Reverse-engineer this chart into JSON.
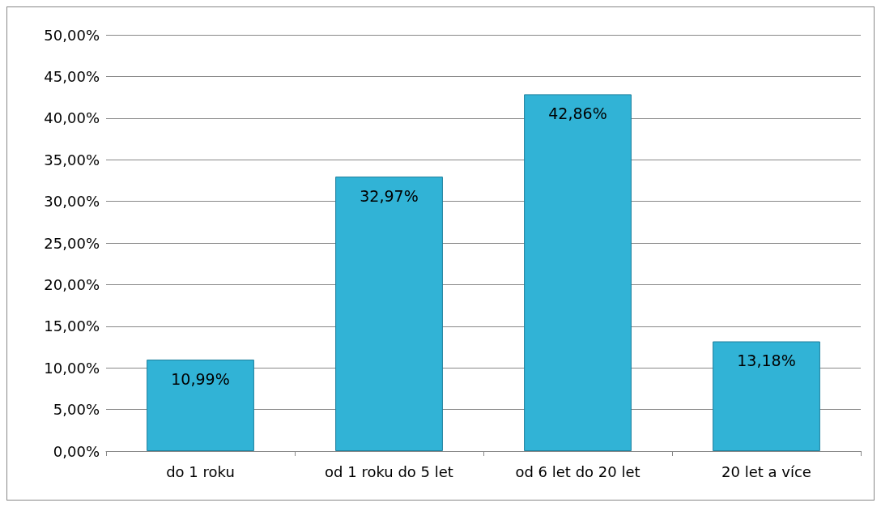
{
  "chart_data": {
    "type": "bar",
    "categories": [
      "do 1 roku",
      "od 1 roku do 5 let",
      "od 6 let do 20 let",
      "20 let a více"
    ],
    "values": [
      10.99,
      32.97,
      42.86,
      13.18
    ],
    "value_labels": [
      "10,99%",
      "32,97%",
      "42,86%",
      "13,18%"
    ],
    "color": "#31b3d6",
    "ylim": [
      0,
      50
    ],
    "yticks": [
      {
        "value": 0,
        "label": "0,00%"
      },
      {
        "value": 5,
        "label": "5,00%"
      },
      {
        "value": 10,
        "label": "10,00%"
      },
      {
        "value": 15,
        "label": "15,00%"
      },
      {
        "value": 20,
        "label": "20,00%"
      },
      {
        "value": 25,
        "label": "25,00%"
      },
      {
        "value": 30,
        "label": "30,00%"
      },
      {
        "value": 35,
        "label": "35,00%"
      },
      {
        "value": 40,
        "label": "40,00%"
      },
      {
        "value": 45,
        "label": "45,00%"
      },
      {
        "value": 50,
        "label": "50,00%"
      }
    ],
    "grid": "y"
  }
}
